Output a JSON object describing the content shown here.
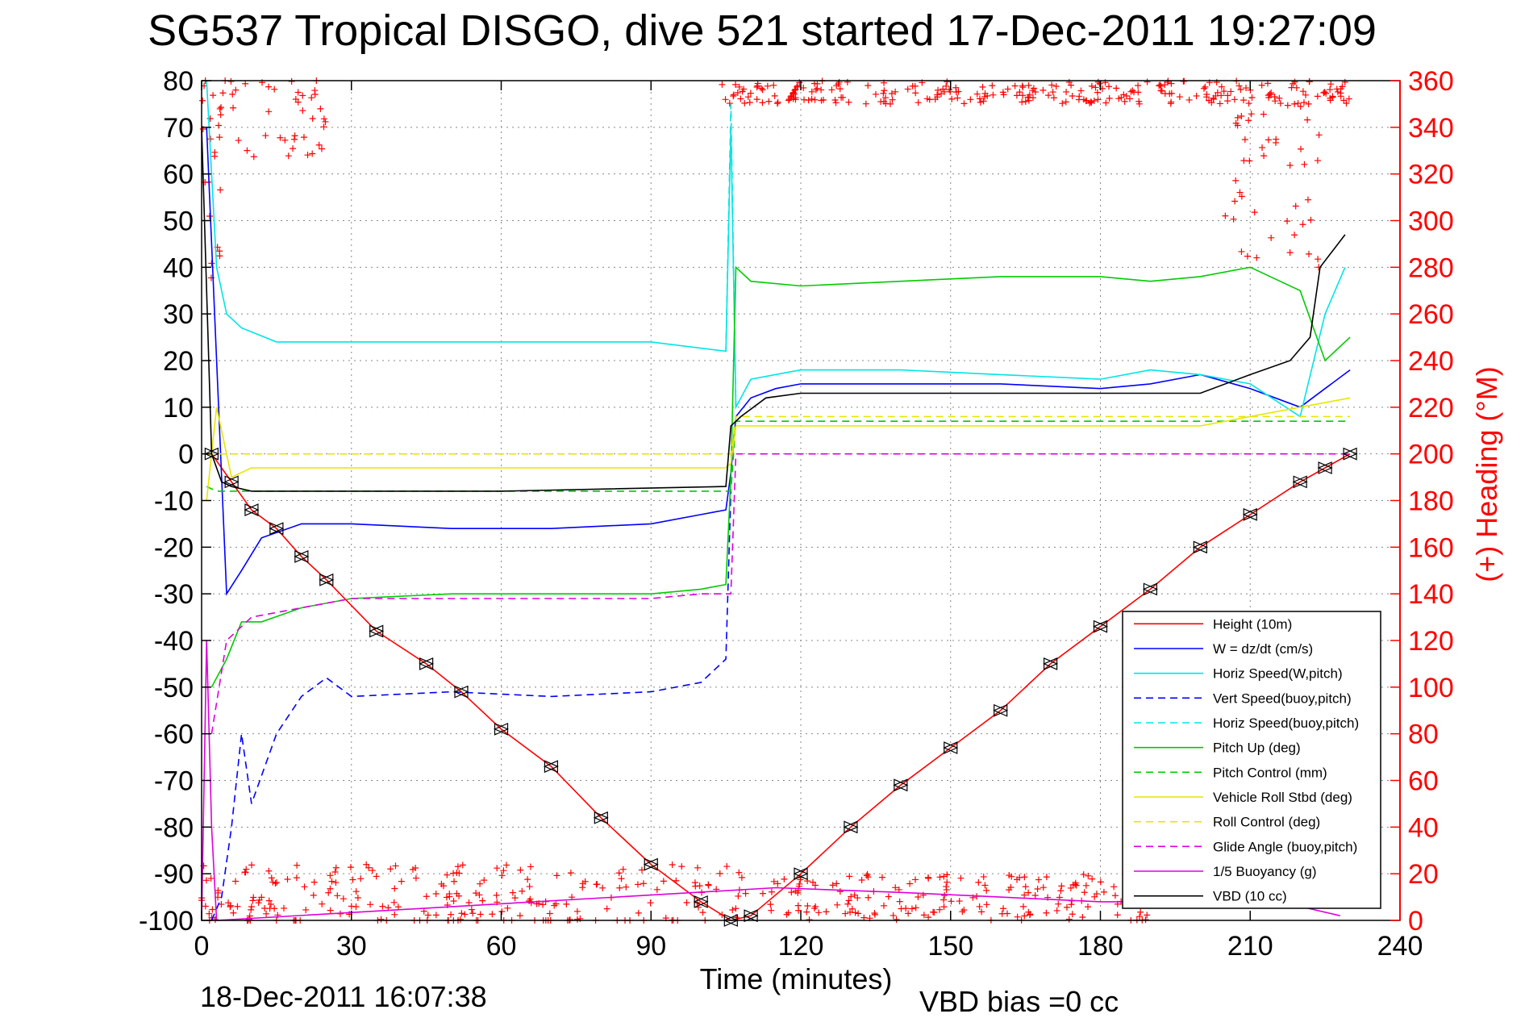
{
  "chart_data": {
    "type": "line",
    "title": "SG537 Tropical DISGO, dive 521 started 17-Dec-2011 19:27:09",
    "xlabel": "Time (minutes)",
    "ylabel_right": "(+) Heading (°M)",
    "xlim": [
      0,
      240
    ],
    "ylim": [
      -100,
      80
    ],
    "ylim_right": [
      0,
      360
    ],
    "x_ticks": [
      0,
      30,
      60,
      90,
      120,
      150,
      180,
      210,
      240
    ],
    "y_ticks": [
      80,
      70,
      60,
      50,
      40,
      30,
      20,
      10,
      0,
      -10,
      -20,
      -30,
      -40,
      -50,
      -60,
      -70,
      -80,
      -90,
      -100
    ],
    "y_ticks_right": [
      360,
      340,
      320,
      300,
      280,
      260,
      240,
      220,
      200,
      180,
      160,
      140,
      120,
      100,
      80,
      60,
      40,
      20,
      0
    ],
    "grid": true,
    "legend_position": "bottom-right",
    "footer_left": "18-Dec-2011 16:07:38",
    "footer_right": "VBD bias =0 cc",
    "colors": {
      "axis_right": "#ff0000",
      "heading": "#ff0000"
    },
    "series": [
      {
        "name": "Height (10m)",
        "color": "#ff0000",
        "dash": "solid",
        "x": [
          2,
          6,
          10,
          15,
          20,
          25,
          35,
          45,
          52,
          60,
          70,
          80,
          90,
          100,
          106,
          110,
          120,
          130,
          140,
          150,
          160,
          170,
          180,
          190,
          200,
          210,
          220,
          225,
          230
        ],
        "y": [
          0,
          -6,
          -12,
          -16,
          -22,
          -27,
          -38,
          -45,
          -51,
          -59,
          -67,
          -78,
          -88,
          -96,
          -100,
          -99,
          -90,
          -80,
          -71,
          -63,
          -55,
          -45,
          -37,
          -29,
          -20,
          -13,
          -6,
          -3,
          0
        ]
      },
      {
        "name": "W = dz/dt (cm/s)",
        "color": "#0000ff",
        "dash": "solid",
        "x": [
          1,
          3,
          5,
          8,
          12,
          20,
          30,
          50,
          70,
          90,
          100,
          105,
          106,
          107,
          110,
          115,
          120,
          140,
          160,
          180,
          190,
          200,
          210,
          220,
          225,
          230
        ],
        "y": [
          70,
          20,
          -30,
          -25,
          -18,
          -15,
          -15,
          -16,
          -16,
          -15,
          -13,
          -12,
          -4,
          8,
          12,
          14,
          15,
          15,
          15,
          14,
          15,
          17,
          14,
          10,
          14,
          18
        ]
      },
      {
        "name": "Horiz Speed(W,pitch)",
        "color": "#00e5e5",
        "dash": "solid",
        "x": [
          1,
          3,
          5,
          8,
          15,
          30,
          50,
          70,
          90,
          105,
          106,
          107,
          110,
          120,
          140,
          160,
          180,
          190,
          200,
          210,
          220,
          225,
          229
        ],
        "y": [
          80,
          40,
          30,
          27,
          24,
          24,
          24,
          24,
          24,
          22,
          70,
          10,
          16,
          18,
          18,
          17,
          16,
          18,
          17,
          15,
          8,
          30,
          40
        ]
      },
      {
        "name": "Vert Speed(buoy,pitch)",
        "color": "#0000ff",
        "dash": "dashed",
        "x": [
          2,
          4,
          6,
          8,
          10,
          15,
          20,
          25,
          30,
          50,
          70,
          90,
          100,
          105,
          106
        ],
        "y": [
          -100,
          -95,
          -80,
          -60,
          -75,
          -60,
          -52,
          -48,
          -52,
          -51,
          -52,
          -51,
          -49,
          -44,
          -8
        ]
      },
      {
        "name": "Horiz Speed(buoy,pitch)",
        "color": "#00e5e5",
        "dash": "dashed",
        "x": [
          105,
          106,
          107
        ],
        "y": [
          22,
          75,
          10
        ]
      },
      {
        "name": "Pitch Up (deg)",
        "color": "#00cc00",
        "dash": "solid",
        "x": [
          2,
          5,
          8,
          12,
          20,
          30,
          50,
          70,
          90,
          100,
          105,
          106,
          107,
          110,
          120,
          140,
          160,
          180,
          190,
          200,
          210,
          220,
          225,
          230
        ],
        "y": [
          -50,
          -44,
          -36,
          -36,
          -33,
          -31,
          -30,
          -30,
          -30,
          -29,
          -28,
          -5,
          40,
          37,
          36,
          37,
          38,
          38,
          37,
          38,
          40,
          35,
          20,
          25
        ]
      },
      {
        "name": "Pitch Control (mm)",
        "color": "#00cc00",
        "dash": "dashed",
        "x": [
          1,
          3,
          5,
          106,
          107,
          230
        ],
        "y": [
          -7,
          -8,
          -8,
          -8,
          7,
          7
        ]
      },
      {
        "name": "Vehicle Roll Stbd (deg)",
        "color": "#e6e600",
        "dash": "solid",
        "x": [
          1,
          3,
          6,
          10,
          30,
          60,
          90,
          105,
          106,
          107,
          140,
          180,
          200,
          220,
          230
        ],
        "y": [
          -10,
          10,
          -5,
          -3,
          -3,
          -3,
          -3,
          -3,
          -2,
          6,
          6,
          6,
          6,
          10,
          12
        ]
      },
      {
        "name": "Roll Control (deg)",
        "color": "#e6e600",
        "dash": "dashed",
        "x": [
          1,
          3,
          105,
          106,
          107,
          230
        ],
        "y": [
          0,
          0,
          0,
          0,
          8,
          8
        ]
      },
      {
        "name": "Glide Angle (buoy,pitch)",
        "color": "#dd00dd",
        "dash": "dashed",
        "x": [
          2,
          5,
          10,
          20,
          30,
          60,
          90,
          100,
          106,
          107,
          230
        ],
        "y": [
          -60,
          -40,
          -35,
          -33,
          -31,
          -31,
          -31,
          -30,
          -30,
          0,
          0
        ]
      },
      {
        "name": "1/5 Buoyancy (g)",
        "color": "#dd00dd",
        "dash": "solid",
        "x": [
          0,
          1,
          2,
          3,
          115,
          140,
          160,
          180,
          200,
          220,
          228
        ],
        "y": [
          -100,
          -40,
          -80,
          -100,
          -93,
          -94,
          -95,
          -96,
          -96,
          -97,
          -99
        ]
      },
      {
        "name": "VBD (10 cc)",
        "color": "#000000",
        "dash": "solid",
        "x": [
          0,
          2,
          4,
          6,
          10,
          60,
          105,
          106,
          108,
          113,
          120,
          160,
          200,
          210,
          218,
          222,
          224,
          229
        ],
        "y": [
          70,
          0,
          -6,
          -7,
          -8,
          -8,
          -7,
          6,
          8,
          12,
          13,
          13,
          13,
          17,
          20,
          25,
          40,
          47
        ]
      }
    ],
    "heading_series": {
      "name": "Heading",
      "axis": "right",
      "color": "#ff0000",
      "marker": "+",
      "groups": [
        {
          "x": [
            0,
            112
          ],
          "y_mean": 10,
          "y_spread": 14
        },
        {
          "x": [
            112,
            190
          ],
          "y_mean": 10,
          "y_spread": 10
        },
        {
          "x": [
            0,
            25
          ],
          "y_mean": 345,
          "y_spread": 18
        },
        {
          "x": [
            0,
            4
          ],
          "y_mean": 300,
          "y_spread": 25
        },
        {
          "x": [
            104,
            230
          ],
          "y_mean": 355,
          "y_spread": 5
        },
        {
          "x": [
            205,
            225
          ],
          "y_mean": 315,
          "y_spread": 35
        }
      ]
    }
  }
}
